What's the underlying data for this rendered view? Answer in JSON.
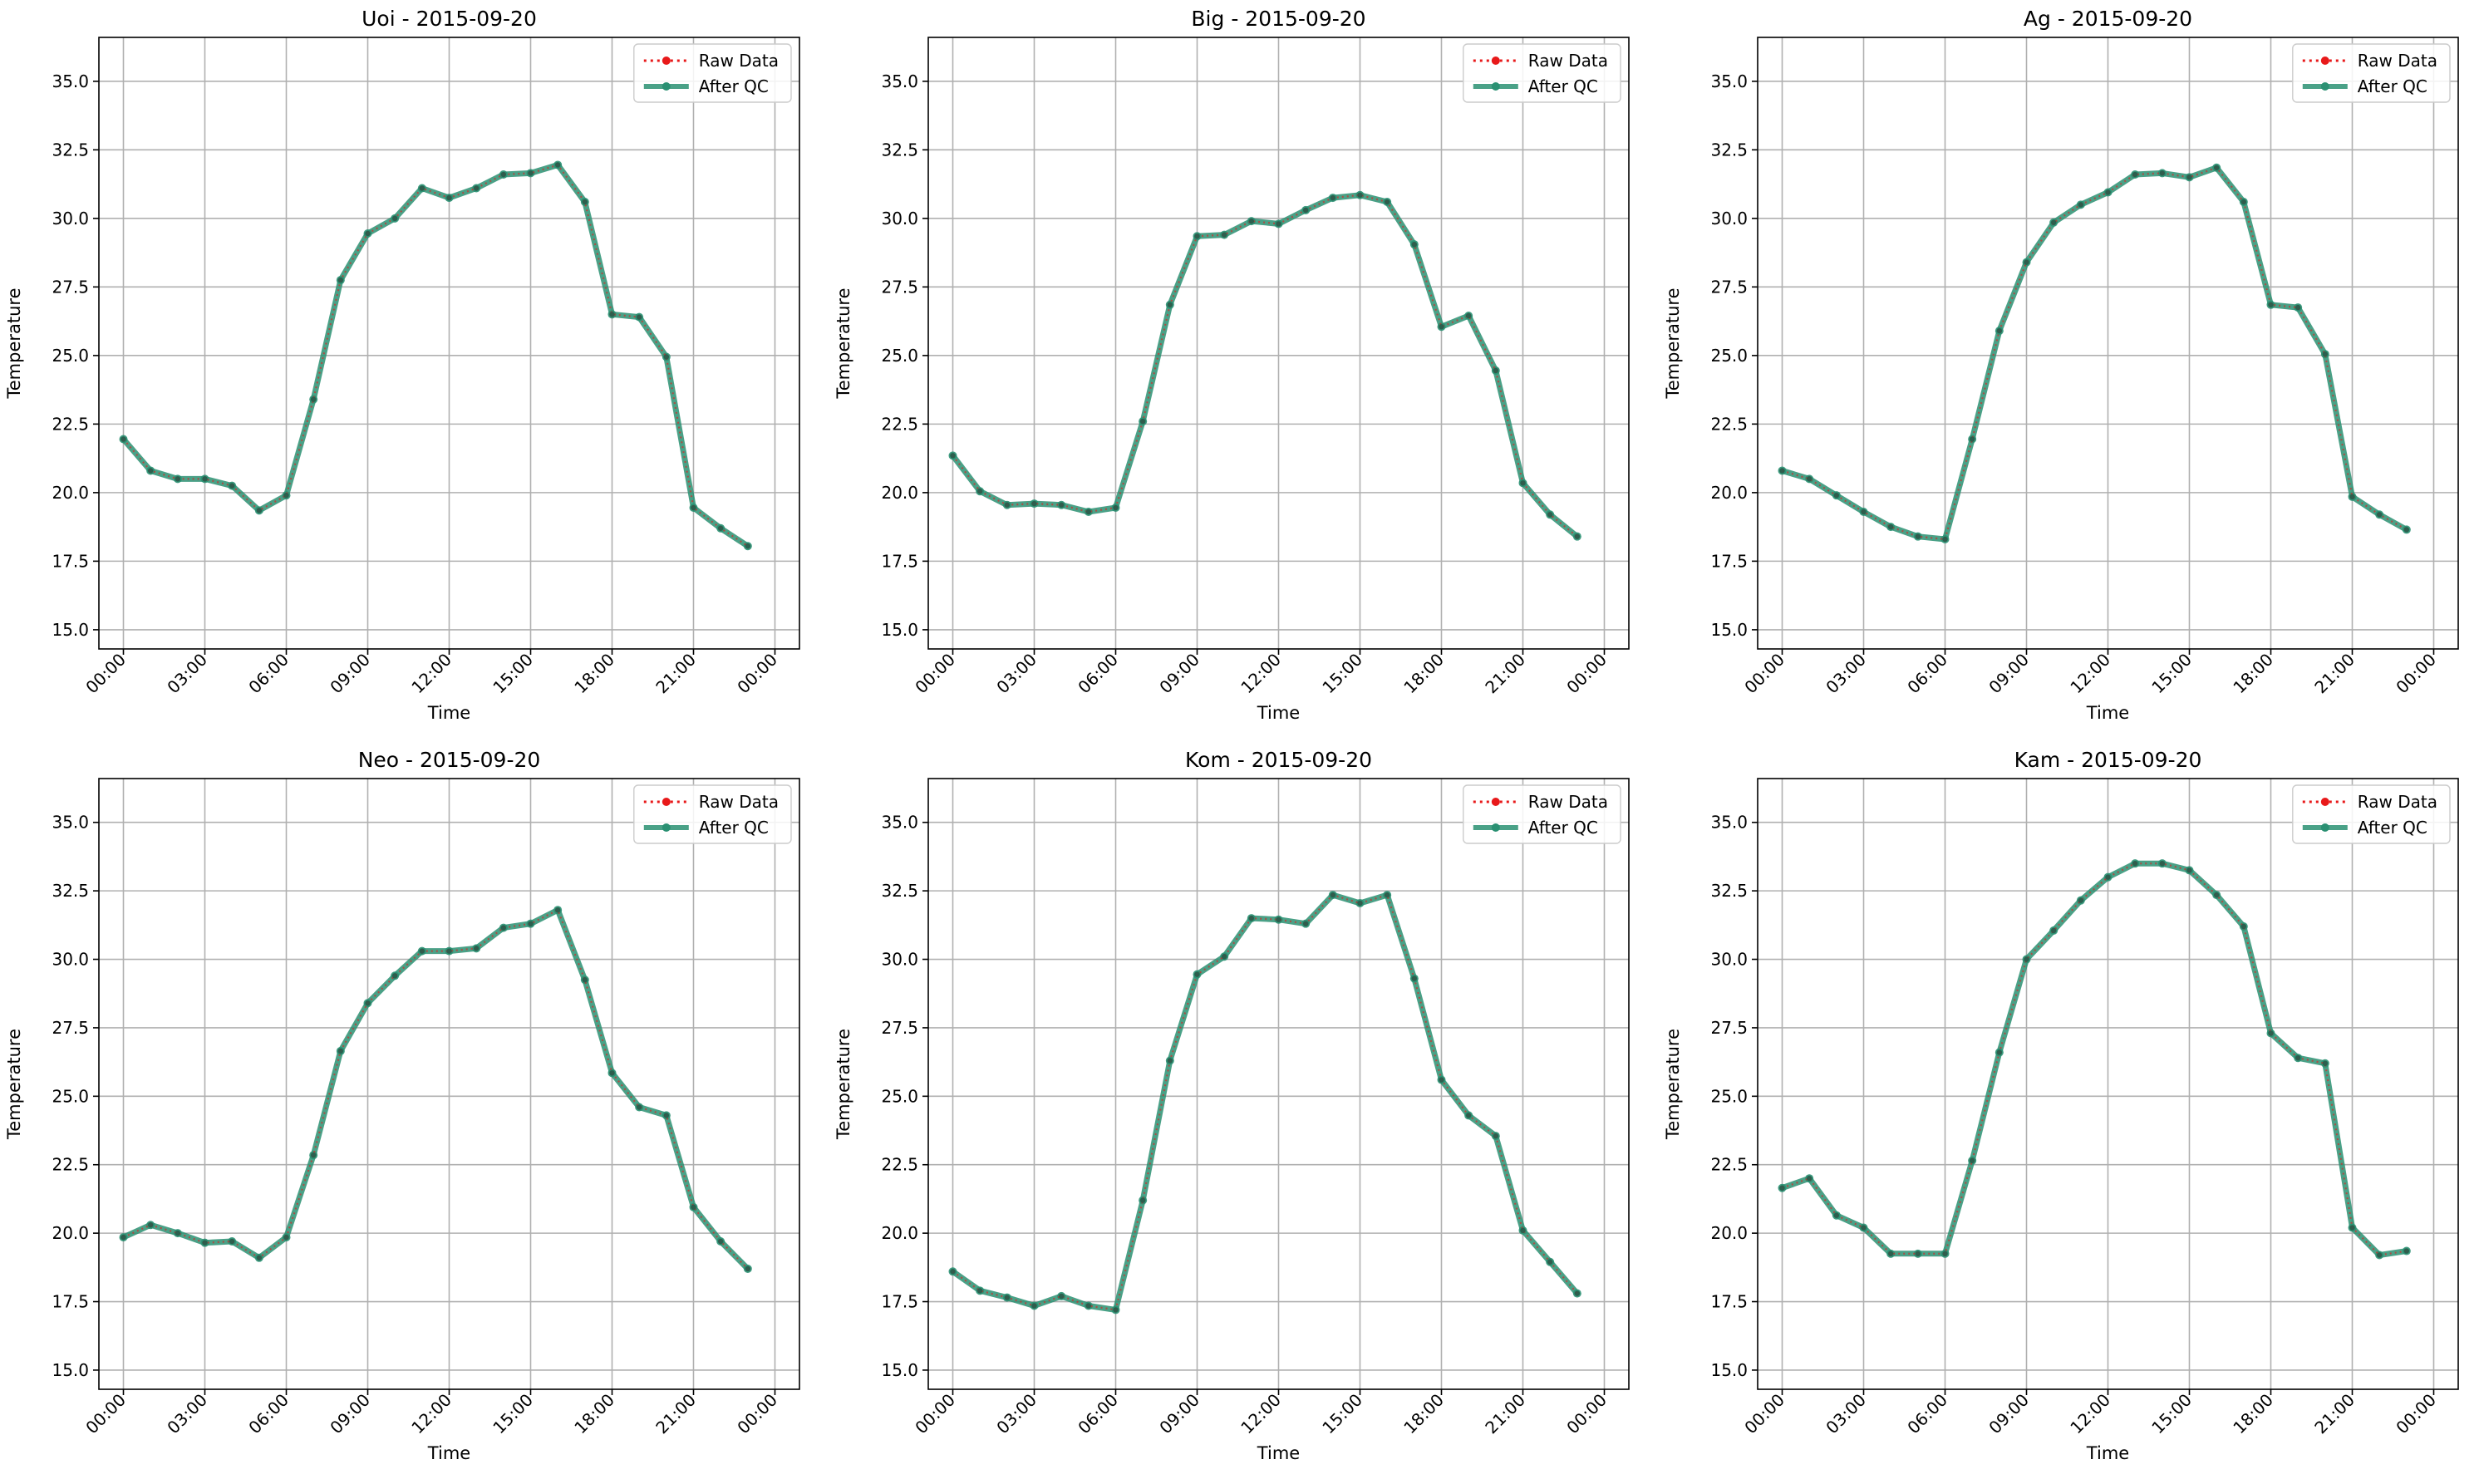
{
  "chart_data": [
    {
      "type": "line",
      "title": "Uoi - 2015-09-20",
      "xlabel": "Time",
      "ylabel": "Temperature",
      "x": [
        "00:00",
        "01:00",
        "02:00",
        "03:00",
        "04:00",
        "05:00",
        "06:00",
        "07:00",
        "08:00",
        "09:00",
        "10:00",
        "11:00",
        "12:00",
        "13:00",
        "14:00",
        "15:00",
        "16:00",
        "17:00",
        "18:00",
        "19:00",
        "20:00",
        "21:00",
        "22:00",
        "23:00"
      ],
      "x_ticks": [
        "00:00",
        "03:00",
        "06:00",
        "09:00",
        "12:00",
        "15:00",
        "18:00",
        "21:00",
        "00:00"
      ],
      "ylim": [
        14.3,
        36.6
      ],
      "y_ticks": [
        "15.0",
        "17.5",
        "20.0",
        "22.5",
        "25.0",
        "27.5",
        "30.0",
        "32.5",
        "35.0"
      ],
      "grid": true,
      "legend_position": "top-right",
      "series": [
        {
          "name": "Raw Data",
          "color": "#e8191a",
          "style": "dotted",
          "values": [
            21.95,
            20.8,
            20.5,
            20.5,
            20.25,
            19.35,
            19.9,
            23.4,
            27.75,
            29.45,
            30.0,
            31.1,
            30.75,
            31.1,
            31.6,
            31.65,
            31.95,
            30.6,
            26.5,
            26.4,
            24.95,
            19.45,
            18.7,
            18.05
          ]
        },
        {
          "name": "After QC",
          "color": "#2a9072",
          "style": "solid",
          "values": [
            21.95,
            20.8,
            20.5,
            20.5,
            20.25,
            19.35,
            19.9,
            23.4,
            27.75,
            29.45,
            30.0,
            31.1,
            30.75,
            31.1,
            31.6,
            31.65,
            31.95,
            30.6,
            26.5,
            26.4,
            24.95,
            19.45,
            18.7,
            18.05
          ]
        }
      ]
    },
    {
      "type": "line",
      "title": "Big - 2015-09-20",
      "xlabel": "Time",
      "ylabel": "Temperature",
      "x": [
        "00:00",
        "01:00",
        "02:00",
        "03:00",
        "04:00",
        "05:00",
        "06:00",
        "07:00",
        "08:00",
        "09:00",
        "10:00",
        "11:00",
        "12:00",
        "13:00",
        "14:00",
        "15:00",
        "16:00",
        "17:00",
        "18:00",
        "19:00",
        "20:00",
        "21:00",
        "22:00",
        "23:00"
      ],
      "x_ticks": [
        "00:00",
        "03:00",
        "06:00",
        "09:00",
        "12:00",
        "15:00",
        "18:00",
        "21:00",
        "00:00"
      ],
      "ylim": [
        14.3,
        36.6
      ],
      "y_ticks": [
        "15.0",
        "17.5",
        "20.0",
        "22.5",
        "25.0",
        "27.5",
        "30.0",
        "32.5",
        "35.0"
      ],
      "grid": true,
      "legend_position": "top-right",
      "series": [
        {
          "name": "Raw Data",
          "color": "#e8191a",
          "style": "dotted",
          "values": [
            21.35,
            20.05,
            19.55,
            19.6,
            19.55,
            19.3,
            19.45,
            22.6,
            26.85,
            29.35,
            29.4,
            29.9,
            29.8,
            30.3,
            30.75,
            30.85,
            30.6,
            29.05,
            26.05,
            26.45,
            24.45,
            20.35,
            19.2,
            18.4
          ]
        },
        {
          "name": "After QC",
          "color": "#2a9072",
          "style": "solid",
          "values": [
            21.35,
            20.05,
            19.55,
            19.6,
            19.55,
            19.3,
            19.45,
            22.6,
            26.85,
            29.35,
            29.4,
            29.9,
            29.8,
            30.3,
            30.75,
            30.85,
            30.6,
            29.05,
            26.05,
            26.45,
            24.45,
            20.35,
            19.2,
            18.4
          ]
        }
      ]
    },
    {
      "type": "line",
      "title": "Ag - 2015-09-20",
      "xlabel": "Time",
      "ylabel": "Temperature",
      "x": [
        "00:00",
        "01:00",
        "02:00",
        "03:00",
        "04:00",
        "05:00",
        "06:00",
        "07:00",
        "08:00",
        "09:00",
        "10:00",
        "11:00",
        "12:00",
        "13:00",
        "14:00",
        "15:00",
        "16:00",
        "17:00",
        "18:00",
        "19:00",
        "20:00",
        "21:00",
        "22:00",
        "23:00"
      ],
      "x_ticks": [
        "00:00",
        "03:00",
        "06:00",
        "09:00",
        "12:00",
        "15:00",
        "18:00",
        "21:00",
        "00:00"
      ],
      "ylim": [
        14.3,
        36.6
      ],
      "y_ticks": [
        "15.0",
        "17.5",
        "20.0",
        "22.5",
        "25.0",
        "27.5",
        "30.0",
        "32.5",
        "35.0"
      ],
      "grid": true,
      "legend_position": "top-right",
      "series": [
        {
          "name": "Raw Data",
          "color": "#e8191a",
          "style": "dotted",
          "values": [
            20.8,
            20.5,
            19.9,
            19.3,
            18.75,
            18.4,
            18.3,
            21.95,
            25.9,
            28.4,
            29.85,
            30.5,
            30.95,
            31.6,
            31.65,
            31.5,
            31.85,
            30.6,
            26.85,
            26.75,
            25.05,
            19.85,
            19.2,
            18.65
          ]
        },
        {
          "name": "After QC",
          "color": "#2a9072",
          "style": "solid",
          "values": [
            20.8,
            20.5,
            19.9,
            19.3,
            18.75,
            18.4,
            18.3,
            21.95,
            25.9,
            28.4,
            29.85,
            30.5,
            30.95,
            31.6,
            31.65,
            31.5,
            31.85,
            30.6,
            26.85,
            26.75,
            25.05,
            19.85,
            19.2,
            18.65
          ]
        }
      ]
    },
    {
      "type": "line",
      "title": "Neo - 2015-09-20",
      "xlabel": "Time",
      "ylabel": "Temperature",
      "x": [
        "00:00",
        "01:00",
        "02:00",
        "03:00",
        "04:00",
        "05:00",
        "06:00",
        "07:00",
        "08:00",
        "09:00",
        "10:00",
        "11:00",
        "12:00",
        "13:00",
        "14:00",
        "15:00",
        "16:00",
        "17:00",
        "18:00",
        "19:00",
        "20:00",
        "21:00",
        "22:00",
        "23:00"
      ],
      "x_ticks": [
        "00:00",
        "03:00",
        "06:00",
        "09:00",
        "12:00",
        "15:00",
        "18:00",
        "21:00",
        "00:00"
      ],
      "ylim": [
        14.3,
        36.6
      ],
      "y_ticks": [
        "15.0",
        "17.5",
        "20.0",
        "22.5",
        "25.0",
        "27.5",
        "30.0",
        "32.5",
        "35.0"
      ],
      "grid": true,
      "legend_position": "top-right",
      "series": [
        {
          "name": "Raw Data",
          "color": "#e8191a",
          "style": "dotted",
          "values": [
            19.85,
            20.3,
            20.0,
            19.65,
            19.7,
            19.1,
            19.85,
            22.85,
            26.65,
            28.4,
            29.4,
            30.3,
            30.3,
            30.4,
            31.15,
            31.3,
            31.8,
            29.25,
            25.85,
            24.6,
            24.3,
            20.95,
            19.7,
            18.7
          ]
        },
        {
          "name": "After QC",
          "color": "#2a9072",
          "style": "solid",
          "values": [
            19.85,
            20.3,
            20.0,
            19.65,
            19.7,
            19.1,
            19.85,
            22.85,
            26.65,
            28.4,
            29.4,
            30.3,
            30.3,
            30.4,
            31.15,
            31.3,
            31.8,
            29.25,
            25.85,
            24.6,
            24.3,
            20.95,
            19.7,
            18.7
          ]
        }
      ]
    },
    {
      "type": "line",
      "title": "Kom - 2015-09-20",
      "xlabel": "Time",
      "ylabel": "Temperature",
      "x": [
        "00:00",
        "01:00",
        "02:00",
        "03:00",
        "04:00",
        "05:00",
        "06:00",
        "07:00",
        "08:00",
        "09:00",
        "10:00",
        "11:00",
        "12:00",
        "13:00",
        "14:00",
        "15:00",
        "16:00",
        "17:00",
        "18:00",
        "19:00",
        "20:00",
        "21:00",
        "22:00",
        "23:00"
      ],
      "x_ticks": [
        "00:00",
        "03:00",
        "06:00",
        "09:00",
        "12:00",
        "15:00",
        "18:00",
        "21:00",
        "00:00"
      ],
      "ylim": [
        14.3,
        36.6
      ],
      "y_ticks": [
        "15.0",
        "17.5",
        "20.0",
        "22.5",
        "25.0",
        "27.5",
        "30.0",
        "32.5",
        "35.0"
      ],
      "grid": true,
      "legend_position": "top-right",
      "series": [
        {
          "name": "Raw Data",
          "color": "#e8191a",
          "style": "dotted",
          "values": [
            18.6,
            17.9,
            17.65,
            17.35,
            17.7,
            17.35,
            17.2,
            21.2,
            26.3,
            29.45,
            30.1,
            31.5,
            31.45,
            31.3,
            32.35,
            32.05,
            32.35,
            29.3,
            25.6,
            24.3,
            23.55,
            20.1,
            18.95,
            17.8
          ]
        },
        {
          "name": "After QC",
          "color": "#2a9072",
          "style": "solid",
          "values": [
            18.6,
            17.9,
            17.65,
            17.35,
            17.7,
            17.35,
            17.2,
            21.2,
            26.3,
            29.45,
            30.1,
            31.5,
            31.45,
            31.3,
            32.35,
            32.05,
            32.35,
            29.3,
            25.6,
            24.3,
            23.55,
            20.1,
            18.95,
            17.8
          ]
        }
      ]
    },
    {
      "type": "line",
      "title": "Kam - 2015-09-20",
      "xlabel": "Time",
      "ylabel": "Temperature",
      "x": [
        "00:00",
        "01:00",
        "02:00",
        "03:00",
        "04:00",
        "05:00",
        "06:00",
        "07:00",
        "08:00",
        "09:00",
        "10:00",
        "11:00",
        "12:00",
        "13:00",
        "14:00",
        "15:00",
        "16:00",
        "17:00",
        "18:00",
        "19:00",
        "20:00",
        "21:00",
        "22:00",
        "23:00"
      ],
      "x_ticks": [
        "00:00",
        "03:00",
        "06:00",
        "09:00",
        "12:00",
        "15:00",
        "18:00",
        "21:00",
        "00:00"
      ],
      "ylim": [
        14.3,
        36.6
      ],
      "y_ticks": [
        "15.0",
        "17.5",
        "20.0",
        "22.5",
        "25.0",
        "27.5",
        "30.0",
        "32.5",
        "35.0"
      ],
      "grid": true,
      "legend_position": "top-right",
      "series": [
        {
          "name": "Raw Data",
          "color": "#e8191a",
          "style": "dotted",
          "values": [
            21.65,
            22.0,
            20.65,
            20.2,
            19.25,
            19.25,
            19.25,
            22.65,
            26.6,
            30.0,
            31.05,
            32.15,
            33.0,
            33.5,
            33.5,
            33.25,
            32.35,
            31.2,
            27.3,
            26.4,
            26.2,
            20.2,
            19.2,
            19.35
          ]
        },
        {
          "name": "After QC",
          "color": "#2a9072",
          "style": "solid",
          "values": [
            21.65,
            22.0,
            20.65,
            20.2,
            19.25,
            19.25,
            19.25,
            22.65,
            26.6,
            30.0,
            31.05,
            32.15,
            33.0,
            33.5,
            33.5,
            33.25,
            32.35,
            31.2,
            27.3,
            26.4,
            26.2,
            20.2,
            19.2,
            19.35
          ]
        }
      ]
    }
  ]
}
